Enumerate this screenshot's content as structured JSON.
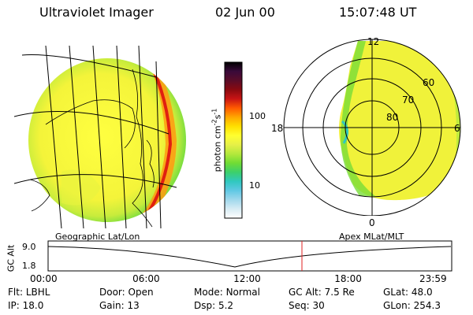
{
  "header": {
    "title": "Ultraviolet Imager",
    "date": "02 Jun 00",
    "time": "15:07:48 UT"
  },
  "colorbar": {
    "label_base": "photon cm",
    "label_exp1": "-2",
    "label_mid": "s",
    "label_exp2": "-1",
    "tick_high": "100",
    "tick_low": "10",
    "colors": [
      "#000000",
      "#3a0a3a",
      "#5a0c28",
      "#8a0a10",
      "#c81414",
      "#ff5a00",
      "#ffa800",
      "#ffe000",
      "#ffff30",
      "#e6f048",
      "#b4e83c",
      "#70dc34",
      "#3cd06c",
      "#30c8c0",
      "#60c8e4",
      "#a0d8ec",
      "#d8ecf4",
      "#ffffff"
    ]
  },
  "polar": {
    "lat_labels": [
      "60",
      "70",
      "80"
    ],
    "mlt_labels": {
      "top": "12",
      "right": "6",
      "bottom": "0",
      "left": "18"
    }
  },
  "timeline": {
    "label_left": "Geographic Lat/Lon",
    "label_right": "Apex MLat/MLT",
    "axis_title": "GC Alt",
    "y_high": "9.0",
    "y_low": "1.8",
    "ticks": [
      "00:00",
      "06:00",
      "12:00",
      "18:00",
      "23:59"
    ],
    "current_marker": "15:07:48"
  },
  "footer": {
    "row1": [
      {
        "label": "Flt:",
        "value": "LBHL"
      },
      {
        "label": "Door:",
        "value": "Open"
      },
      {
        "label": "Mode:",
        "value": "Normal"
      },
      {
        "label": "GC Alt:",
        "value": "7.5 Re"
      },
      {
        "label": "GLat:",
        "value": "48.0"
      }
    ],
    "row2": [
      {
        "label": "IP:",
        "value": "18.0"
      },
      {
        "label": "Gain:",
        "value": "13"
      },
      {
        "label": "Dsp:",
        "value": "5.2"
      },
      {
        "label": "Seq:",
        "value": "30"
      },
      {
        "label": "GLon:",
        "value": "254.3"
      }
    ]
  }
}
